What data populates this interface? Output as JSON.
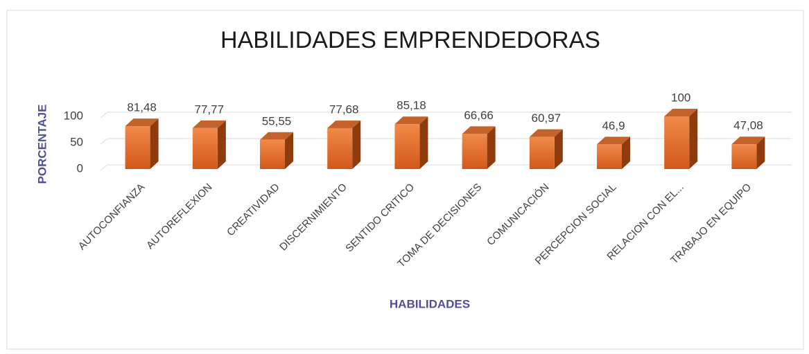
{
  "chart_data": {
    "type": "bar3d",
    "title": "HABILIDADES EMPRENDEDORAS",
    "y_label": "PORCENTAJE",
    "x_label": "HABILIDADES",
    "categories": [
      "AUTOCONFIANZA",
      "AUTOREFLEXION",
      "CREATIVIDAD",
      "DISCERNIMIENTO",
      "SENTIDO CRITICO",
      "TOMA DE DECISIONES",
      "COMUNICACIÓN",
      "PERCEPCION SOCIAL",
      "RELACION CON EL...",
      "TRABAJO EN EQUIPO"
    ],
    "values": [
      81.48,
      77.77,
      55.55,
      77.68,
      85.18,
      66.66,
      60.97,
      46.9,
      100,
      47.08
    ],
    "value_labels": [
      "81,48",
      "77,77",
      "55,55",
      "77,68",
      "85,18",
      "66,66",
      "60,97",
      "46,9",
      "100",
      "47,08"
    ],
    "color": "#e0651f",
    "ylim": [
      0,
      100
    ],
    "yticks": [
      0,
      50,
      100
    ],
    "grid": true
  }
}
